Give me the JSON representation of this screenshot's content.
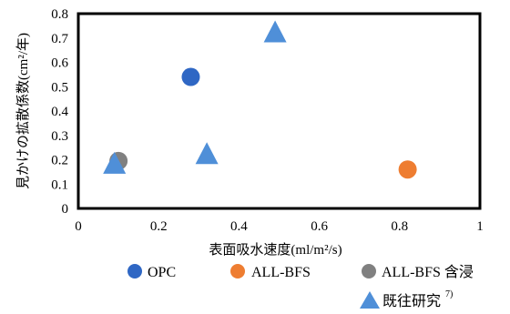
{
  "chart_data": {
    "type": "scatter",
    "xlabel": "表面吸水速度(ml/m²/s)",
    "ylabel": "見かけの拡散係数(cm²/年)",
    "xlim": [
      0,
      1
    ],
    "ylim": [
      0,
      0.8
    ],
    "x_ticks": [
      "0",
      "0.2",
      "0.4",
      "0.6",
      "0.8",
      "1"
    ],
    "y_ticks": [
      "0",
      "0.1",
      "0.2",
      "0.3",
      "0.4",
      "0.5",
      "0.6",
      "0.7",
      "0.8"
    ],
    "grid": false,
    "legend_position": "bottom",
    "series": [
      {
        "name": "OPC",
        "marker": "circle",
        "color": "#2F67C4",
        "points": [
          [
            0.28,
            0.54
          ]
        ]
      },
      {
        "name": "ALL-BFS",
        "marker": "circle",
        "color": "#EE7D31",
        "points": [
          [
            0.82,
            0.16
          ]
        ]
      },
      {
        "name": "ALL-BFS 含浸",
        "marker": "circle",
        "color": "#808080",
        "points": [
          [
            0.1,
            0.195
          ]
        ]
      },
      {
        "name": "既往研究",
        "marker": "triangle",
        "color": "#4F8FD8",
        "points": [
          [
            0.09,
            0.18
          ],
          [
            0.32,
            0.22
          ],
          [
            0.49,
            0.72
          ]
        ]
      }
    ],
    "legend": {
      "superscript": "7)"
    }
  }
}
